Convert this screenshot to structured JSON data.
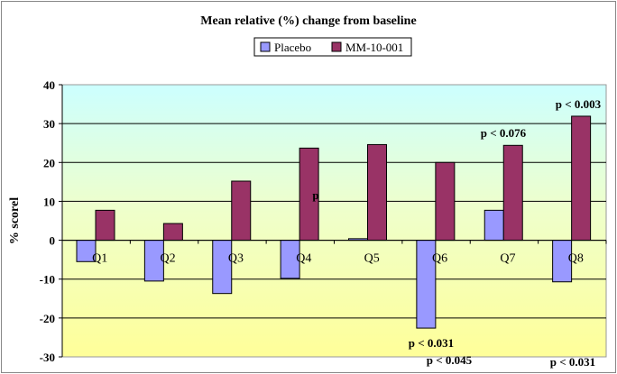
{
  "chart_data": {
    "type": "bar",
    "title": "Mean relative (%) change from baseline",
    "xlabel": "",
    "ylabel": "% scorel",
    "ylim": [
      -30,
      40
    ],
    "yticks": [
      -30,
      -20,
      -10,
      0,
      10,
      20,
      30,
      40
    ],
    "grid": true,
    "legend_position": "top-center",
    "categories": [
      "Q1",
      "Q2",
      "Q3",
      "Q4",
      "Q5",
      "Q6",
      "Q7",
      "Q8"
    ],
    "series": [
      {
        "name": "Placebo",
        "color": "#9999ff",
        "values": [
          -5.5,
          -10.5,
          -13.7,
          -9.8,
          0.4,
          -22.6,
          7.7,
          -10.7
        ]
      },
      {
        "name": "MM-10-001",
        "color": "#993366",
        "values": [
          7.7,
          4.3,
          15.2,
          23.7,
          24.6,
          20.0,
          24.4,
          31.9
        ]
      }
    ],
    "annotations": [
      "p < 0.003",
      "p < 0.076",
      "p",
      "p < 0.031",
      "p < 0.045",
      "p < 0.031"
    ]
  }
}
